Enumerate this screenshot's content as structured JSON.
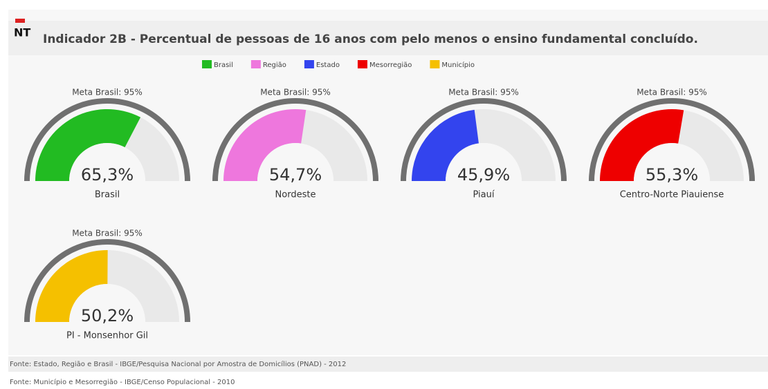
{
  "chart_data": {
    "type": "gauge",
    "logo": "NT",
    "title": "Indicador 2B - Percentual de pessoas de 16 anos com pelo menos o ensino fundamental concluído.",
    "ylim": [
      0,
      100
    ],
    "series": [
      {
        "name": "Brasil",
        "color": "#22bb22",
        "values": [
          65.3
        ],
        "value_labels": [
          "65,3%"
        ],
        "label": "Brasil",
        "target_label": "Meta Brasil: 95%"
      },
      {
        "name": "Região",
        "color": "#ee77dd",
        "values": [
          54.7
        ],
        "value_labels": [
          "54,7%"
        ],
        "label": "Nordeste",
        "target_label": "Meta Brasil: 95%"
      },
      {
        "name": "Estado",
        "color": "#3344ee",
        "values": [
          45.9
        ],
        "value_labels": [
          "45,9%"
        ],
        "label": "Piauí",
        "target_label": "Meta Brasil: 95%"
      },
      {
        "name": "Mesorregião",
        "color": "#ee0000",
        "values": [
          55.3
        ],
        "value_labels": [
          "55,3%"
        ],
        "label": "Centro-Norte Piauiense",
        "target_label": "Meta Brasil: 95%"
      },
      {
        "name": "Município",
        "color": "#f5c000",
        "values": [
          50.2
        ],
        "value_labels": [
          "50,2%"
        ],
        "label": "PI - Monsenhor Gil",
        "target_label": "Meta Brasil: 95%"
      }
    ],
    "notes": [
      "Fonte: Estado, Região e Brasil - IBGE/Pesquisa Nacional por Amostra de Domicílios (PNAD) - 2012",
      "Fonte: Município e Mesorregião - IBGE/Censo Populacional - 2010"
    ]
  }
}
